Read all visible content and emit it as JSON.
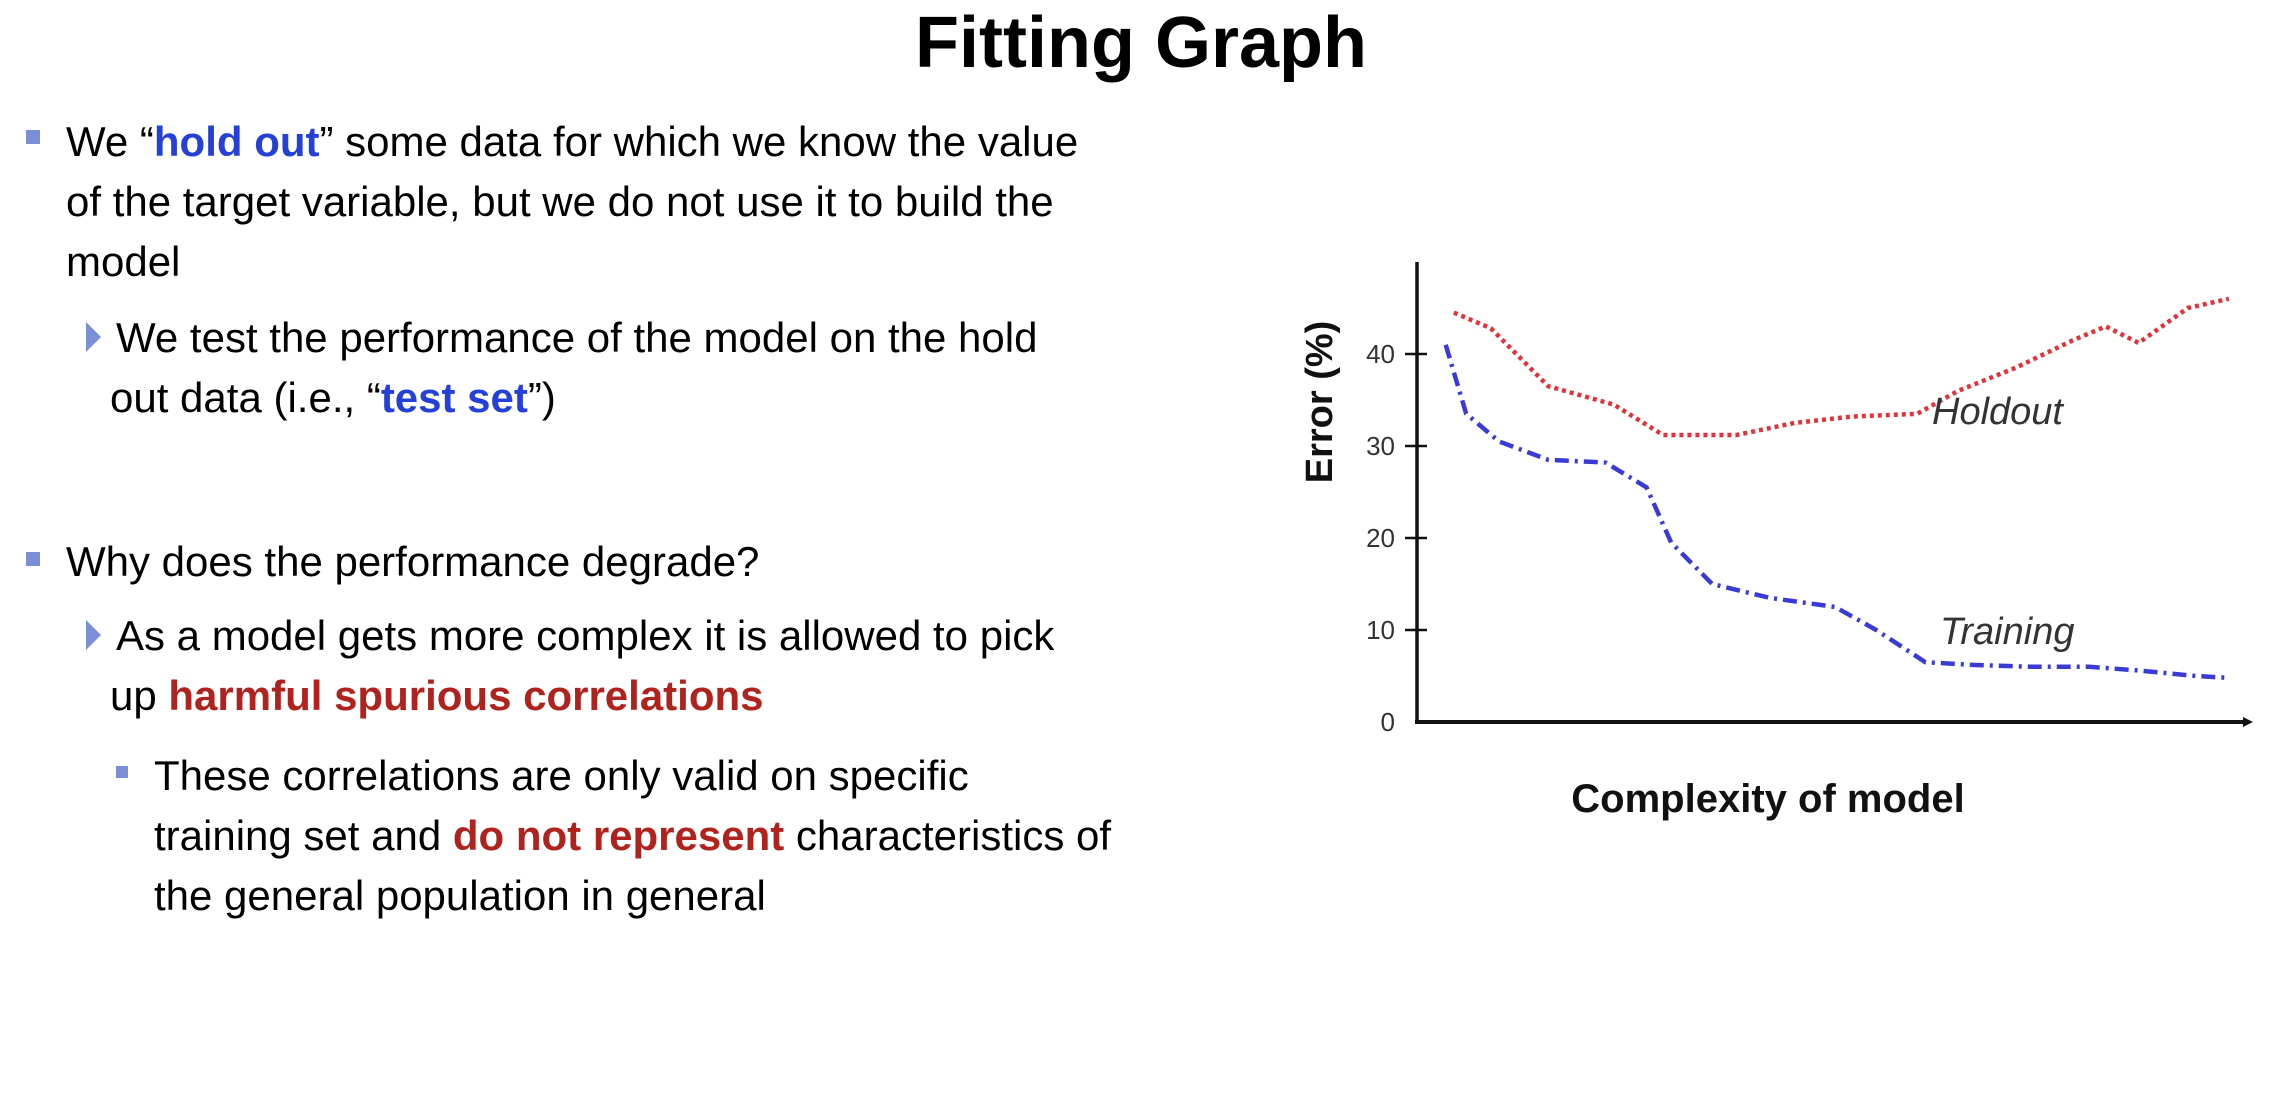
{
  "slide": {
    "title": "Fitting Graph"
  },
  "bullets": {
    "b1": {
      "l1_pre": "We “",
      "l1_hl": "hold out",
      "l1_post": "” some data for which we know the value",
      "l2": "of the target variable, but we do not use it to build the",
      "l3": "model"
    },
    "b1a": {
      "l1": "We test the performance of the model on the hold",
      "l2_pre": "out data (i.e., “",
      "l2_hl": "test set",
      "l2_post": "”)"
    },
    "b2": {
      "l1": "Why does the performance degrade?"
    },
    "b2a": {
      "l1": "As a model gets more complex it is allowed to pick",
      "l2_pre": "up ",
      "l2_hl": "harmful spurious correlations"
    },
    "b2a1": {
      "l1": "These correlations are only valid on specific",
      "l2_pre": "training set and ",
      "l2_hl": "do not represent",
      "l2_post": " characteristics of",
      "l3": "the general population in general"
    }
  },
  "chart_data": {
    "type": "line",
    "title": "",
    "xlabel": "Complexity of model",
    "ylabel": "Error (%)",
    "yticks": [
      0,
      10,
      20,
      30,
      40
    ],
    "ylim": [
      0,
      50
    ],
    "xlim": [
      0,
      10
    ],
    "grid": false,
    "colors": {
      "holdout": "#e0333a",
      "training": "#3a3ad6"
    },
    "series": [
      {
        "name": "Holdout",
        "style": "dotted",
        "x": [
          0.45,
          0.9,
          1.6,
          2.4,
          3.0,
          3.9,
          4.6,
          5.3,
          6.1,
          6.6,
          7.3,
          8.0,
          8.4,
          8.8,
          9.4,
          9.9
        ],
        "y": [
          44.5,
          42.8,
          36.5,
          34.5,
          31.2,
          31.2,
          32.5,
          33.2,
          33.5,
          36.0,
          38.5,
          41.5,
          43.0,
          41.2,
          45.0,
          46.0
        ]
      },
      {
        "name": "Training",
        "style": "dashdot",
        "x": [
          0.35,
          0.6,
          1.0,
          1.6,
          2.3,
          2.8,
          3.1,
          3.6,
          4.3,
          5.1,
          5.6,
          6.2,
          6.8,
          7.5,
          8.2,
          8.8,
          9.5,
          9.9
        ],
        "y": [
          41.0,
          33.5,
          30.5,
          28.5,
          28.2,
          25.5,
          19.5,
          15.0,
          13.5,
          12.5,
          10.0,
          6.5,
          6.2,
          6.0,
          6.0,
          5.6,
          5.0,
          4.8
        ]
      }
    ]
  }
}
